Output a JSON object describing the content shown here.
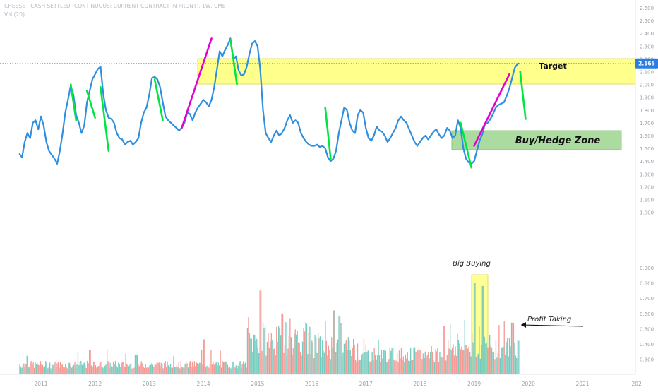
{
  "header": {
    "title": "CHEESE - CASH SETTLED (CONTINUOUS: CURRENT CONTRACT IN FRONT), 1W, CME",
    "volume_label": "Vol (20)"
  },
  "price_badge": "2.165",
  "annotations": {
    "target": "Target",
    "buy_hedge": "Buy/Hedge Zone",
    "big_buying": "Big Buying",
    "profit_taking": "Profit Taking"
  },
  "colors": {
    "price_line": "#2e8fe0",
    "green_lines": "#00e640",
    "magenta_lines": "#e600d0",
    "target_zone": "#ffff66",
    "buy_zone": "#8fcf7f",
    "vol_up": "#76cbbf",
    "vol_down": "#f59a95",
    "badge": "#2a7ee3",
    "axis_text": "#9aa0aa"
  },
  "chart_data": {
    "type": "line",
    "title": "CHEESE - CASH SETTLED (CONTINUOUS: CURRENT CONTRACT IN FRONT), 1W, CME",
    "x_ticks": [
      "2011",
      "2012",
      "2013",
      "2014",
      "2015",
      "2016",
      "2017",
      "2018",
      "2019",
      "2020",
      "2021",
      "202"
    ],
    "price_axis": [
      "2.600",
      "2.500",
      "2.400",
      "2.300",
      "2.200",
      "2.100",
      "2.000",
      "1.900",
      "1.800",
      "1.700",
      "1.600",
      "1.500",
      "1.400",
      "1.300",
      "1.200",
      "1.100",
      "1.000"
    ],
    "volume_axis": [
      "0.900",
      "0.800",
      "0.700",
      "0.600",
      "0.500",
      "0.400",
      "0.300"
    ],
    "price_ylim": [
      1.0,
      2.6
    ],
    "current_price": 2.165,
    "series": [
      {
        "name": "Cheese",
        "points": [
          [
            2010.6,
            1.46
          ],
          [
            2010.65,
            1.43
          ],
          [
            2010.7,
            1.55
          ],
          [
            2010.75,
            1.62
          ],
          [
            2010.8,
            1.58
          ],
          [
            2010.85,
            1.7
          ],
          [
            2010.9,
            1.72
          ],
          [
            2010.95,
            1.65
          ],
          [
            2011.0,
            1.75
          ],
          [
            2011.05,
            1.68
          ],
          [
            2011.1,
            1.55
          ],
          [
            2011.15,
            1.48
          ],
          [
            2011.2,
            1.45
          ],
          [
            2011.25,
            1.42
          ],
          [
            2011.3,
            1.38
          ],
          [
            2011.35,
            1.48
          ],
          [
            2011.4,
            1.62
          ],
          [
            2011.45,
            1.78
          ],
          [
            2011.5,
            1.88
          ],
          [
            2011.55,
            1.99
          ],
          [
            2011.6,
            1.92
          ],
          [
            2011.65,
            1.76
          ],
          [
            2011.7,
            1.7
          ],
          [
            2011.75,
            1.62
          ],
          [
            2011.8,
            1.68
          ],
          [
            2011.85,
            1.86
          ],
          [
            2011.9,
            1.95
          ],
          [
            2011.95,
            2.04
          ],
          [
            2012.0,
            2.08
          ],
          [
            2012.05,
            2.12
          ],
          [
            2012.1,
            2.14
          ],
          [
            2012.15,
            1.93
          ],
          [
            2012.2,
            1.8
          ],
          [
            2012.25,
            1.74
          ],
          [
            2012.3,
            1.73
          ],
          [
            2012.35,
            1.7
          ],
          [
            2012.4,
            1.62
          ],
          [
            2012.45,
            1.58
          ],
          [
            2012.5,
            1.57
          ],
          [
            2012.55,
            1.53
          ],
          [
            2012.6,
            1.55
          ],
          [
            2012.65,
            1.56
          ],
          [
            2012.7,
            1.53
          ],
          [
            2012.75,
            1.55
          ],
          [
            2012.8,
            1.58
          ],
          [
            2012.85,
            1.7
          ],
          [
            2012.9,
            1.78
          ],
          [
            2012.95,
            1.82
          ],
          [
            2013.0,
            1.92
          ],
          [
            2013.05,
            2.05
          ],
          [
            2013.1,
            2.06
          ],
          [
            2013.15,
            2.04
          ],
          [
            2013.2,
            1.98
          ],
          [
            2013.25,
            1.86
          ],
          [
            2013.3,
            1.75
          ],
          [
            2013.35,
            1.72
          ],
          [
            2013.4,
            1.7
          ],
          [
            2013.45,
            1.68
          ],
          [
            2013.5,
            1.66
          ],
          [
            2013.55,
            1.64
          ],
          [
            2013.6,
            1.66
          ],
          [
            2013.65,
            1.7
          ],
          [
            2013.7,
            1.78
          ],
          [
            2013.75,
            1.77
          ],
          [
            2013.8,
            1.72
          ],
          [
            2013.85,
            1.78
          ],
          [
            2013.9,
            1.82
          ],
          [
            2013.95,
            1.85
          ],
          [
            2014.0,
            1.88
          ],
          [
            2014.05,
            1.86
          ],
          [
            2014.1,
            1.83
          ],
          [
            2014.15,
            1.88
          ],
          [
            2014.2,
            1.98
          ],
          [
            2014.25,
            2.12
          ],
          [
            2014.3,
            2.26
          ],
          [
            2014.35,
            2.22
          ],
          [
            2014.4,
            2.27
          ],
          [
            2014.45,
            2.31
          ],
          [
            2014.5,
            2.36
          ],
          [
            2014.55,
            2.2
          ],
          [
            2014.6,
            2.22
          ],
          [
            2014.65,
            2.11
          ],
          [
            2014.7,
            2.07
          ],
          [
            2014.75,
            2.08
          ],
          [
            2014.8,
            2.14
          ],
          [
            2014.85,
            2.24
          ],
          [
            2014.9,
            2.32
          ],
          [
            2014.95,
            2.34
          ],
          [
            2015.0,
            2.3
          ],
          [
            2015.05,
            2.12
          ],
          [
            2015.1,
            1.8
          ],
          [
            2015.15,
            1.62
          ],
          [
            2015.2,
            1.58
          ],
          [
            2015.25,
            1.55
          ],
          [
            2015.3,
            1.6
          ],
          [
            2015.35,
            1.64
          ],
          [
            2015.4,
            1.6
          ],
          [
            2015.45,
            1.62
          ],
          [
            2015.5,
            1.66
          ],
          [
            2015.55,
            1.72
          ],
          [
            2015.6,
            1.76
          ],
          [
            2015.65,
            1.7
          ],
          [
            2015.7,
            1.72
          ],
          [
            2015.75,
            1.7
          ],
          [
            2015.8,
            1.62
          ],
          [
            2015.85,
            1.58
          ],
          [
            2015.9,
            1.55
          ],
          [
            2015.95,
            1.53
          ],
          [
            2016.0,
            1.52
          ],
          [
            2016.05,
            1.52
          ],
          [
            2016.1,
            1.53
          ],
          [
            2016.15,
            1.51
          ],
          [
            2016.2,
            1.52
          ],
          [
            2016.25,
            1.5
          ],
          [
            2016.3,
            1.43
          ],
          [
            2016.35,
            1.4
          ],
          [
            2016.4,
            1.42
          ],
          [
            2016.45,
            1.48
          ],
          [
            2016.5,
            1.62
          ],
          [
            2016.55,
            1.72
          ],
          [
            2016.6,
            1.82
          ],
          [
            2016.65,
            1.8
          ],
          [
            2016.7,
            1.7
          ],
          [
            2016.75,
            1.64
          ],
          [
            2016.8,
            1.62
          ],
          [
            2016.85,
            1.76
          ],
          [
            2016.9,
            1.8
          ],
          [
            2016.95,
            1.78
          ],
          [
            2017.0,
            1.66
          ],
          [
            2017.05,
            1.58
          ],
          [
            2017.1,
            1.56
          ],
          [
            2017.15,
            1.6
          ],
          [
            2017.2,
            1.67
          ],
          [
            2017.25,
            1.64
          ],
          [
            2017.3,
            1.63
          ],
          [
            2017.35,
            1.6
          ],
          [
            2017.4,
            1.55
          ],
          [
            2017.45,
            1.58
          ],
          [
            2017.5,
            1.62
          ],
          [
            2017.55,
            1.66
          ],
          [
            2017.6,
            1.72
          ],
          [
            2017.65,
            1.75
          ],
          [
            2017.7,
            1.72
          ],
          [
            2017.75,
            1.7
          ],
          [
            2017.8,
            1.65
          ],
          [
            2017.85,
            1.6
          ],
          [
            2017.9,
            1.55
          ],
          [
            2017.95,
            1.52
          ],
          [
            2018.0,
            1.55
          ],
          [
            2018.05,
            1.58
          ],
          [
            2018.1,
            1.6
          ],
          [
            2018.15,
            1.57
          ],
          [
            2018.2,
            1.6
          ],
          [
            2018.25,
            1.63
          ],
          [
            2018.3,
            1.65
          ],
          [
            2018.35,
            1.61
          ],
          [
            2018.4,
            1.58
          ],
          [
            2018.45,
            1.6
          ],
          [
            2018.5,
            1.66
          ],
          [
            2018.55,
            1.64
          ],
          [
            2018.6,
            1.58
          ],
          [
            2018.65,
            1.6
          ],
          [
            2018.7,
            1.72
          ],
          [
            2018.75,
            1.66
          ],
          [
            2018.8,
            1.5
          ],
          [
            2018.85,
            1.42
          ],
          [
            2018.9,
            1.39
          ],
          [
            2018.95,
            1.38
          ],
          [
            2019.0,
            1.4
          ],
          [
            2019.05,
            1.48
          ],
          [
            2019.1,
            1.56
          ],
          [
            2019.15,
            1.61
          ],
          [
            2019.2,
            1.69
          ],
          [
            2019.25,
            1.7
          ],
          [
            2019.3,
            1.73
          ],
          [
            2019.35,
            1.77
          ],
          [
            2019.4,
            1.82
          ],
          [
            2019.45,
            1.84
          ],
          [
            2019.5,
            1.85
          ],
          [
            2019.55,
            1.86
          ],
          [
            2019.6,
            1.91
          ],
          [
            2019.65,
            1.97
          ],
          [
            2019.7,
            2.05
          ],
          [
            2019.75,
            2.13
          ],
          [
            2019.8,
            2.16
          ],
          [
            2019.83,
            2.165
          ]
        ]
      }
    ],
    "volume": [
      {
        "x": 2011.9,
        "v": 0.36
      },
      {
        "x": 2012.75,
        "v": 0.33
      },
      {
        "x": 2014.0,
        "v": 0.43
      },
      {
        "x": 2015.05,
        "v": 0.75
      },
      {
        "x": 2015.45,
        "v": 0.6
      },
      {
        "x": 2016.4,
        "v": 0.62
      },
      {
        "x": 2016.5,
        "v": 0.58
      },
      {
        "x": 2018.45,
        "v": 0.52
      },
      {
        "x": 2019.0,
        "v": 0.8
      },
      {
        "x": 2019.15,
        "v": 0.78
      },
      {
        "x": 2019.7,
        "v": 0.54
      }
    ],
    "grid": false,
    "legend": "none"
  }
}
